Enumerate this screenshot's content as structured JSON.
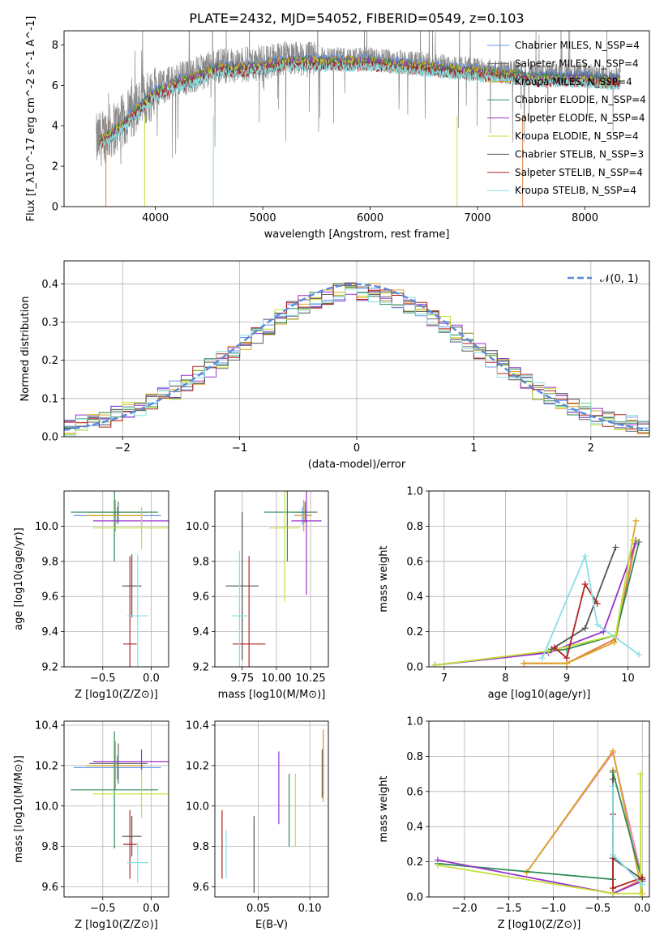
{
  "figure_title": "PLATE=2432, MJD=54052, FIBERID=0549, z=0.103",
  "palette": [
    "#6495ed",
    "#696969",
    "#daa520",
    "#2e8b57",
    "#9932cc",
    "#c5e03a",
    "#555555",
    "#b22222",
    "#87dfe3"
  ],
  "chart_data": [
    {
      "id": "spectrum",
      "type": "line",
      "xlabel": "wavelength [Angstrom, rest frame]",
      "ylabel": "Flux [f_λ10^-17 erg cm^-2 s^-1 A^-1]",
      "xlim": [
        3150,
        8600
      ],
      "ylim": [
        0,
        8.7
      ],
      "xticks": [
        4000,
        5000,
        6000,
        7000,
        8000
      ],
      "yticks": [
        0,
        2,
        4,
        6,
        8
      ],
      "grid": false,
      "legend_position": "right",
      "data_envelope": {
        "x": [
          3450,
          3500,
          3600,
          3700,
          3800,
          3900,
          4000,
          4100,
          4200,
          4300,
          4400,
          4500,
          4600,
          4800,
          5000,
          5200,
          5400,
          5600,
          5800,
          6000,
          6200,
          6400,
          6600,
          6800,
          7000,
          7200,
          7400,
          7600,
          7800,
          8000,
          8200,
          8300
        ],
        "y": [
          3.2,
          3.4,
          3.8,
          4.2,
          4.8,
          5.3,
          5.8,
          6.0,
          6.3,
          6.4,
          6.6,
          6.8,
          7.0,
          7.0,
          7.1,
          7.3,
          7.3,
          7.3,
          7.3,
          7.3,
          7.2,
          7.1,
          7.0,
          6.9,
          6.8,
          6.7,
          6.6,
          6.5,
          6.5,
          6.5,
          6.4,
          6.4
        ]
      },
      "series": [
        {
          "name": "Chabrier MILES, N_SSP=4"
        },
        {
          "name": "Salpeter MILES, N_SSP=4"
        },
        {
          "name": "Kroupa MILES, N_SSP=4"
        },
        {
          "name": "Chabrier ELODIE, N_SSP=4"
        },
        {
          "name": "Salpeter ELODIE, N_SSP=4"
        },
        {
          "name": "Kroupa ELODIE, N_SSP=4"
        },
        {
          "name": "Chabrier STELIB, N_SSP=3"
        },
        {
          "name": "Salpeter STELIB, N_SSP=4"
        },
        {
          "name": "Kroupa STELIB, N_SSP=4"
        }
      ]
    },
    {
      "id": "residuals",
      "type": "line",
      "xlabel": "(data-model)/error",
      "ylabel": "Normed distribution",
      "xlim": [
        -2.5,
        2.5
      ],
      "ylim": [
        0,
        0.46
      ],
      "xticks": [
        -2,
        -1,
        0,
        1,
        2
      ],
      "yticks": [
        0.0,
        0.1,
        0.2,
        0.3,
        0.4
      ],
      "grid": true,
      "legend_position": "top-right",
      "legend": "𝒩(0, 1)"
    },
    {
      "id": "age_vs_Z",
      "type": "scatter",
      "xlabel": "Z [log10(Z/Z⊙)]",
      "ylabel": "age [log10(age/yr)]",
      "xlim": [
        -0.9,
        0.18
      ],
      "ylim": [
        9.2,
        10.2
      ],
      "xticks": [
        -0.5,
        0.0
      ],
      "yticks": [
        9.2,
        9.4,
        9.6,
        9.8,
        10.0
      ],
      "grid": true,
      "points": [
        {
          "x": -0.35,
          "y": 10.06,
          "xerr": 0.45,
          "yerr": 0.05
        },
        {
          "x": -0.34,
          "y": 10.08,
          "xerr": 0.3,
          "yerr": 0.06
        },
        {
          "x": -0.37,
          "y": 10.06,
          "xerr": 0.3,
          "yerr": 0.09
        },
        {
          "x": -0.38,
          "y": 10.08,
          "xerr": 0.45,
          "yerr": 0.28
        },
        {
          "x": -0.1,
          "y": 10.03,
          "xerr": 0.5,
          "yerr": 0.07
        },
        {
          "x": -0.1,
          "y": 9.99,
          "xerr": 0.5,
          "yerr": 0.12
        },
        {
          "x": -0.2,
          "y": 9.66,
          "xerr": 0.1,
          "yerr": 0.18
        },
        {
          "x": -0.22,
          "y": 9.33,
          "xerr": 0.07,
          "yerr": 0.5
        },
        {
          "x": -0.14,
          "y": 9.49,
          "xerr": 0.11,
          "yerr": 0.35
        }
      ]
    },
    {
      "id": "age_vs_mass",
      "type": "scatter",
      "xlabel": "mass [log10(M/M⊙)]",
      "ylabel": "",
      "xlim": [
        9.55,
        10.38
      ],
      "ylim": [
        9.2,
        10.2
      ],
      "xticks": [
        9.75,
        10.0,
        10.25
      ],
      "yticks": [
        9.2,
        9.4,
        9.6,
        9.8,
        10.0
      ],
      "grid": true,
      "points": [
        {
          "x": 10.19,
          "y": 10.06,
          "xerr": 0.06,
          "yerr": 0.05
        },
        {
          "x": 10.21,
          "y": 10.08,
          "xerr": 0.09,
          "yerr": 0.06
        },
        {
          "x": 10.2,
          "y": 10.06,
          "xerr": 0.06,
          "yerr": 0.09
        },
        {
          "x": 10.08,
          "y": 10.08,
          "xerr": 0.17,
          "yerr": 0.28
        },
        {
          "x": 10.22,
          "y": 10.03,
          "xerr": 0.11,
          "yerr": 0.42
        },
        {
          "x": 10.06,
          "y": 9.99,
          "xerr": 0.11,
          "yerr": 0.42
        },
        {
          "x": 9.75,
          "y": 9.66,
          "xerr": 0.12,
          "yerr": 0.42
        },
        {
          "x": 9.8,
          "y": 9.33,
          "xerr": 0.12,
          "yerr": 0.5
        },
        {
          "x": 9.73,
          "y": 9.49,
          "xerr": 0.06,
          "yerr": 0.37
        }
      ]
    },
    {
      "id": "mass_weight_vs_age",
      "type": "line",
      "xlabel": "age [log10(age/yr)]",
      "ylabel": "mass weight",
      "xlim": [
        6.75,
        10.35
      ],
      "ylim": [
        0,
        1.0
      ],
      "xticks": [
        7,
        8,
        9,
        10
      ],
      "yticks": [
        0.0,
        0.2,
        0.4,
        0.6,
        0.8,
        1.0
      ],
      "grid": true,
      "series": [
        {
          "x": [
            8.3,
            9.0,
            9.8,
            10.12
          ],
          "y": [
            0.02,
            0.02,
            0.16,
            0.72
          ]
        },
        {
          "x": [
            8.3,
            9.0,
            9.8,
            10.13
          ],
          "y": [
            0.02,
            0.02,
            0.16,
            0.72
          ]
        },
        {
          "x": [
            8.3,
            9.0,
            9.78,
            10.13
          ],
          "y": [
            0.02,
            0.02,
            0.14,
            0.83
          ]
        },
        {
          "x": [
            6.85,
            9.0,
            9.8,
            10.18
          ],
          "y": [
            0.01,
            0.1,
            0.18,
            0.71
          ]
        },
        {
          "x": [
            6.85,
            8.7,
            9.6,
            10.12
          ],
          "y": [
            0.01,
            0.08,
            0.2,
            0.7
          ]
        },
        {
          "x": [
            6.85,
            8.7,
            9.8,
            10.08
          ],
          "y": [
            0.01,
            0.09,
            0.18,
            0.72
          ]
        },
        {
          "x": [
            8.75,
            9.3,
            9.8
          ],
          "y": [
            0.1,
            0.22,
            0.68
          ]
        },
        {
          "x": [
            8.8,
            9.0,
            9.3,
            9.5
          ],
          "y": [
            0.11,
            0.05,
            0.47,
            0.36
          ]
        },
        {
          "x": [
            8.6,
            9.3,
            9.5,
            10.18
          ],
          "y": [
            0.05,
            0.63,
            0.24,
            0.07
          ]
        }
      ]
    },
    {
      "id": "mass_vs_Z",
      "type": "scatter",
      "xlabel": "Z [log10(Z/Z⊙)]",
      "ylabel": "mass [log10(M/M⊙)]",
      "xlim": [
        -0.9,
        0.18
      ],
      "ylim": [
        9.55,
        10.42
      ],
      "xticks": [
        -0.5,
        0.0
      ],
      "yticks": [
        9.6,
        9.8,
        10.0,
        10.2,
        10.4
      ],
      "grid": true,
      "points": [
        {
          "x": -0.35,
          "y": 10.19,
          "xerr": 0.45,
          "yerr": 0.06
        },
        {
          "x": -0.34,
          "y": 10.21,
          "xerr": 0.3,
          "yerr": 0.1
        },
        {
          "x": -0.37,
          "y": 10.2,
          "xerr": 0.3,
          "yerr": 0.12
        },
        {
          "x": -0.38,
          "y": 10.08,
          "xerr": 0.45,
          "yerr": 0.29
        },
        {
          "x": -0.1,
          "y": 10.22,
          "xerr": 0.5,
          "yerr": 0.06
        },
        {
          "x": -0.1,
          "y": 10.06,
          "xerr": 0.5,
          "yerr": 0.12
        },
        {
          "x": -0.2,
          "y": 9.85,
          "xerr": 0.1,
          "yerr": 0.1
        },
        {
          "x": -0.22,
          "y": 9.81,
          "xerr": 0.07,
          "yerr": 0.17
        },
        {
          "x": -0.14,
          "y": 9.72,
          "xerr": 0.11,
          "yerr": 0.1
        }
      ]
    },
    {
      "id": "mass_vs_EBV",
      "type": "scatter",
      "xlabel": "E(B-V)",
      "ylabel": "",
      "xlim": [
        0.008,
        0.118
      ],
      "ylim": [
        9.55,
        10.42
      ],
      "xticks": [
        0.05,
        0.1
      ],
      "yticks": [
        9.6,
        9.8,
        10.0,
        10.2,
        10.4
      ],
      "grid": true,
      "points": [
        {
          "x": 0.113,
          "y": 10.21,
          "yerr": 0.16
        },
        {
          "x": 0.112,
          "y": 10.16,
          "yerr": 0.12
        },
        {
          "x": 0.113,
          "y": 10.2,
          "yerr": 0.18
        },
        {
          "x": 0.08,
          "y": 9.98,
          "yerr": 0.18
        },
        {
          "x": 0.07,
          "y": 10.09,
          "yerr": 0.18
        },
        {
          "x": 0.086,
          "y": 9.98,
          "yerr": 0.18
        },
        {
          "x": 0.046,
          "y": 9.76,
          "yerr": 0.19
        },
        {
          "x": 0.015,
          "y": 9.81,
          "yerr": 0.17
        },
        {
          "x": 0.019,
          "y": 9.76,
          "yerr": 0.12
        }
      ]
    },
    {
      "id": "mass_weight_vs_Z",
      "type": "line",
      "xlabel": "Z [log10(Z/Z⊙)]",
      "ylabel": "mass weight",
      "xlim": [
        -2.4,
        0.08
      ],
      "ylim": [
        0,
        1.0
      ],
      "xticks": [
        -2.0,
        -1.5,
        -1.0,
        -0.5,
        0.0
      ],
      "yticks": [
        0.0,
        0.2,
        0.4,
        0.6,
        0.8,
        1.0
      ],
      "grid": true,
      "series": [
        {
          "x": [
            -1.3,
            -0.33,
            0.0
          ],
          "y": [
            0.14,
            0.82,
            0.1
          ]
        },
        {
          "x": [
            -0.33,
            -0.33,
            0.0
          ],
          "y": [
            0.72,
            0.02,
            0.1
          ]
        },
        {
          "x": [
            -1.3,
            -0.33,
            0.0
          ],
          "y": [
            0.14,
            0.83,
            0.02
          ]
        },
        {
          "x": [
            -2.3,
            -0.33,
            -0.33,
            0.0
          ],
          "y": [
            0.19,
            0.1,
            0.71,
            0.09
          ]
        },
        {
          "x": [
            -2.3,
            -0.33,
            0.0
          ],
          "y": [
            0.21,
            0.02,
            0.09
          ]
        },
        {
          "x": [
            -2.3,
            -0.33,
            -0.02,
            -0.02
          ],
          "y": [
            0.18,
            0.02,
            0.02,
            0.7
          ]
        },
        {
          "x": [
            -0.33,
            -0.33,
            0.0
          ],
          "y": [
            0.67,
            0.22,
            0.1
          ]
        },
        {
          "x": [
            -0.33,
            -0.33,
            0.0
          ],
          "y": [
            0.47,
            0.05,
            0.11
          ]
        },
        {
          "x": [
            -0.33,
            -0.33,
            0.0
          ],
          "y": [
            0.63,
            0.24,
            0.07
          ]
        }
      ]
    }
  ]
}
